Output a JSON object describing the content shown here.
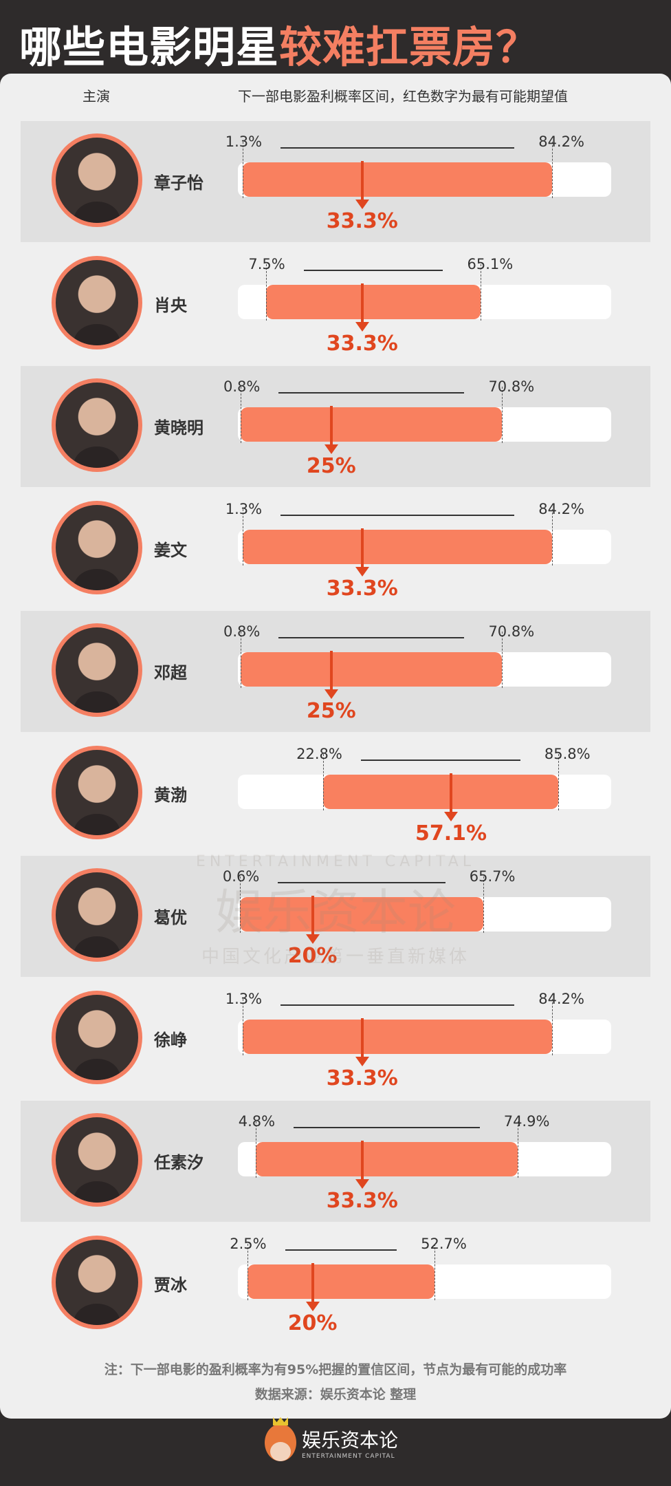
{
  "title": {
    "part1": "哪些电影明星",
    "part2": "较难扛票房？"
  },
  "header": {
    "actor": "主演",
    "range": "下一部电影盈利概率区间，红色数字为最有可能期望值"
  },
  "colors": {
    "background": "#2e2b2b",
    "accent": "#f47f62",
    "bar": "#f9805f",
    "mode": "#e0461f",
    "card": "#efefef"
  },
  "chart_data": {
    "type": "range-bar",
    "title": "哪些电影明星较难扛票房？",
    "xlabel": "下一部电影盈利概率区间（%）",
    "xlim": [
      0,
      100
    ],
    "categories": [
      "章子怡",
      "肖央",
      "黄晓明",
      "姜文",
      "邓超",
      "黄渤",
      "葛优",
      "徐峥",
      "任素汐",
      "贾冰"
    ],
    "series": [
      {
        "name": "low",
        "values": [
          1.3,
          7.5,
          0.8,
          1.3,
          0.8,
          22.8,
          0.6,
          1.3,
          4.8,
          2.5
        ]
      },
      {
        "name": "high",
        "values": [
          84.2,
          65.1,
          70.8,
          84.2,
          70.8,
          85.8,
          65.7,
          84.2,
          74.9,
          52.7
        ]
      },
      {
        "name": "mode",
        "values": [
          33.3,
          33.3,
          25,
          33.3,
          25,
          57.1,
          20,
          33.3,
          33.3,
          20
        ]
      }
    ],
    "labels": {
      "low": [
        "1.3%",
        "7.5%",
        "0.8%",
        "1.3%",
        "0.8%",
        "22.8%",
        "0.6%",
        "1.3%",
        "4.8%",
        "2.5%"
      ],
      "high": [
        "84.2%",
        "65.1%",
        "70.8%",
        "84.2%",
        "70.8%",
        "85.8%",
        "65.7%",
        "84.2%",
        "74.9%",
        "52.7%"
      ],
      "mode": [
        "33.3%",
        "33.3%",
        "25%",
        "33.3%",
        "25%",
        "57.1%",
        "20%",
        "33.3%",
        "33.3%",
        "20%"
      ]
    }
  },
  "watermark": {
    "name": "娱乐资本论",
    "en": "ENTERTAINMENT CAPITAL",
    "slogan": "中国文化产业第一垂直新媒体"
  },
  "footer": {
    "note": "注：下一部电影的盈利概率为有95%把握的置信区间，节点为最有可能的成功率",
    "source": "数据来源：娱乐资本论 整理"
  },
  "logo": {
    "name": "娱乐资本论",
    "en": "ENTERTAINMENT CAPITAL"
  }
}
